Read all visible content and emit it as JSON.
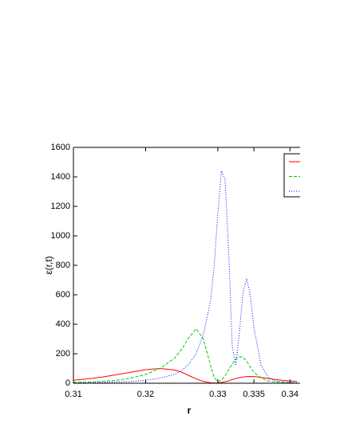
{
  "chart_data": {
    "type": "line",
    "y_label": "ε(r,t)",
    "x_label": "r",
    "x": [
      0.31,
      0.312,
      0.314,
      0.316,
      0.318,
      0.32,
      0.322,
      0.324,
      0.325,
      0.326,
      0.327,
      0.328,
      0.329,
      0.3295,
      0.33,
      0.3305,
      0.331,
      0.3315,
      0.332,
      0.3325,
      0.333,
      0.3335,
      0.334,
      0.3345,
      0.335,
      0.336,
      0.337,
      0.338,
      0.34,
      0.341
    ],
    "series": [
      {
        "color": "#ff0000",
        "dash": "none",
        "values": [
          20,
          30,
          42,
          58,
          75,
          92,
          100,
          90,
          75,
          52,
          30,
          12,
          3,
          1,
          2,
          5,
          10,
          16,
          25,
          32,
          38,
          42,
          45,
          46,
          45,
          40,
          32,
          25,
          15,
          12
        ]
      },
      {
        "color": "#00cc00",
        "dash": "4,2",
        "values": [
          5,
          8,
          12,
          20,
          35,
          60,
          100,
          170,
          230,
          310,
          370,
          300,
          120,
          40,
          10,
          20,
          50,
          90,
          130,
          165,
          180,
          175,
          150,
          110,
          75,
          35,
          15,
          8,
          3,
          2
        ]
      },
      {
        "color": "#0000ff",
        "dash": "1,2",
        "values": [
          2,
          3,
          5,
          8,
          12,
          20,
          35,
          60,
          85,
          130,
          200,
          330,
          560,
          800,
          1150,
          1440,
          1380,
          900,
          250,
          120,
          350,
          620,
          710,
          600,
          380,
          120,
          40,
          15,
          5,
          3
        ]
      }
    ],
    "xlim": [
      0.31,
      0.3414
    ],
    "xticks": [
      0.31,
      0.32,
      0.33,
      0.335,
      0.34
    ],
    "ylim": [
      0,
      1600
    ],
    "yticks": [
      0,
      200,
      400,
      600,
      800,
      1000,
      1200,
      1400,
      1600
    ]
  }
}
